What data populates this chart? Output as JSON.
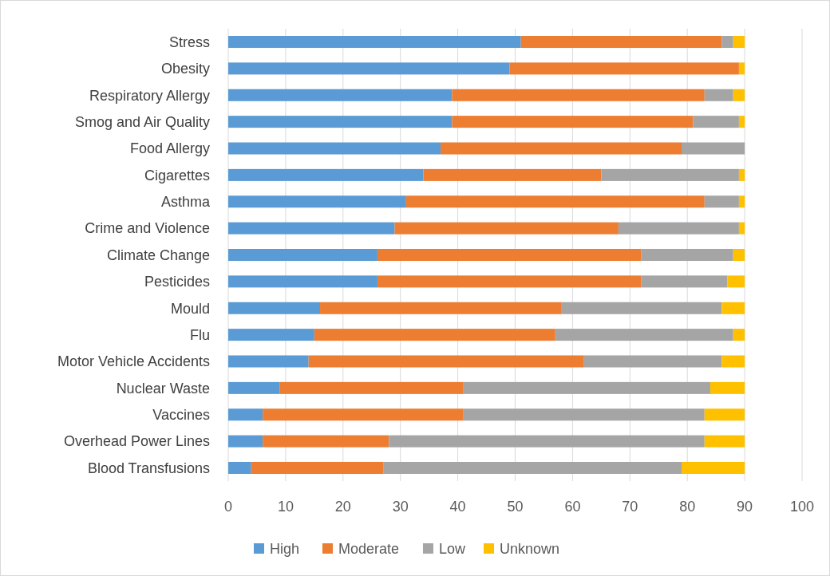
{
  "chart_data": {
    "type": "bar",
    "orientation": "horizontal",
    "stacked": true,
    "categories": [
      "Stress",
      "Obesity",
      "Respiratory Allergy",
      "Smog and Air Quality",
      "Food Allergy",
      "Cigarettes",
      "Asthma",
      "Crime and Violence",
      "Climate Change",
      "Pesticides",
      "Mould",
      "Flu",
      "Motor Vehicle Accidents",
      "Nuclear Waste",
      "Vaccines",
      "Overhead Power Lines",
      "Blood Transfusions"
    ],
    "series": [
      {
        "name": "High",
        "color": "#5b9bd5",
        "values": [
          51,
          49,
          39,
          39,
          37,
          34,
          31,
          29,
          26,
          26,
          16,
          15,
          14,
          9,
          6,
          6,
          4
        ]
      },
      {
        "name": "Moderate",
        "color": "#ed7d31",
        "values": [
          35,
          40,
          44,
          42,
          42,
          31,
          52,
          39,
          46,
          46,
          42,
          42,
          48,
          32,
          35,
          22,
          23
        ]
      },
      {
        "name": "Low",
        "color": "#a5a5a5",
        "values": [
          2,
          0,
          5,
          8,
          11,
          24,
          6,
          21,
          16,
          15,
          28,
          31,
          24,
          43,
          42,
          55,
          52
        ]
      },
      {
        "name": "Unknown",
        "color": "#ffc000",
        "values": [
          2,
          1,
          2,
          1,
          0,
          1,
          1,
          1,
          2,
          3,
          4,
          2,
          4,
          6,
          7,
          7,
          11
        ]
      }
    ],
    "xlim": [
      0,
      100
    ],
    "xticks": [
      0,
      10,
      20,
      30,
      40,
      50,
      60,
      70,
      80,
      90,
      100
    ],
    "grid": "x",
    "legend": "bottom"
  }
}
